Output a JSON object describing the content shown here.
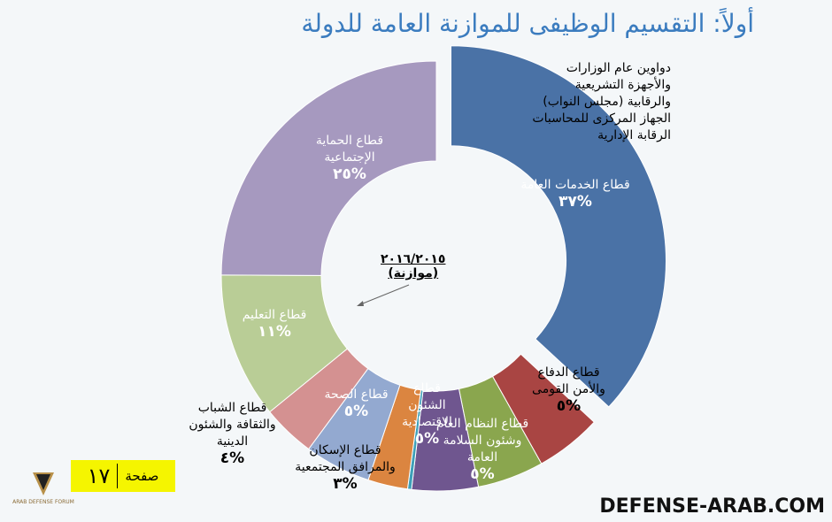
{
  "title": "أولاً: التقسيم الوظيفى للموازنة العامة للدولة",
  "chart_data": {
    "type": "pie",
    "subtype": "donut",
    "title": "أولاً: التقسيم الوظيفى للموازنة العامة للدولة",
    "center_label": [
      "٢٠١٦/٢٠١٥",
      "(موازنة)"
    ],
    "slices": [
      {
        "name": "قطاع الخدمات العامة",
        "value": 37,
        "label": "%٣٧",
        "color": "#4a72a6"
      },
      {
        "name": "قطاع الدفاع والأمن القومى",
        "value": 5,
        "label": "%٥",
        "color": "#a94543"
      },
      {
        "name": "قطاع النظام العام وشئون السلامة العامة",
        "value": 5,
        "label": "%٥",
        "color": "#8aa64e"
      },
      {
        "name": "قطاع الشئون الاقتصادية",
        "value": 5,
        "label": "%٥",
        "color": "#6f568f"
      },
      {
        "name": "",
        "value": 0.3,
        "label": "",
        "color": "#3ea0b8"
      },
      {
        "name": "قطاع الإسكان والمرافق المجتمعية",
        "value": 3,
        "label": "%٣",
        "color": "#db8540"
      },
      {
        "name": "قطاع الصحة",
        "value": 5,
        "label": "%٥",
        "color": "#93a9d0"
      },
      {
        "name": "قطاع الشباب والثقافة والشئون الدينية",
        "value": 4,
        "label": "%٤",
        "color": "#d49191"
      },
      {
        "name": "قطاع التعليم",
        "value": 11,
        "label": "%١١",
        "color": "#b9cd96"
      },
      {
        "name": "قطاع الحماية الإجتماعية",
        "value": 25,
        "label": "%٢٥",
        "color": "#a699bf"
      }
    ]
  },
  "note": [
    "دواوين عام الوزارات",
    "والأجهزة التشريعية والرقابية (مجلس النواب)",
    "الجهاز المركزى للمحاسبات",
    "الرقابة الإدارية"
  ],
  "page": {
    "label": "صفحة",
    "number": "١٧"
  },
  "logo": {
    "text": "ARAB DEFENSE FORUM"
  },
  "site": "DEFENSE-ARAB.COM"
}
